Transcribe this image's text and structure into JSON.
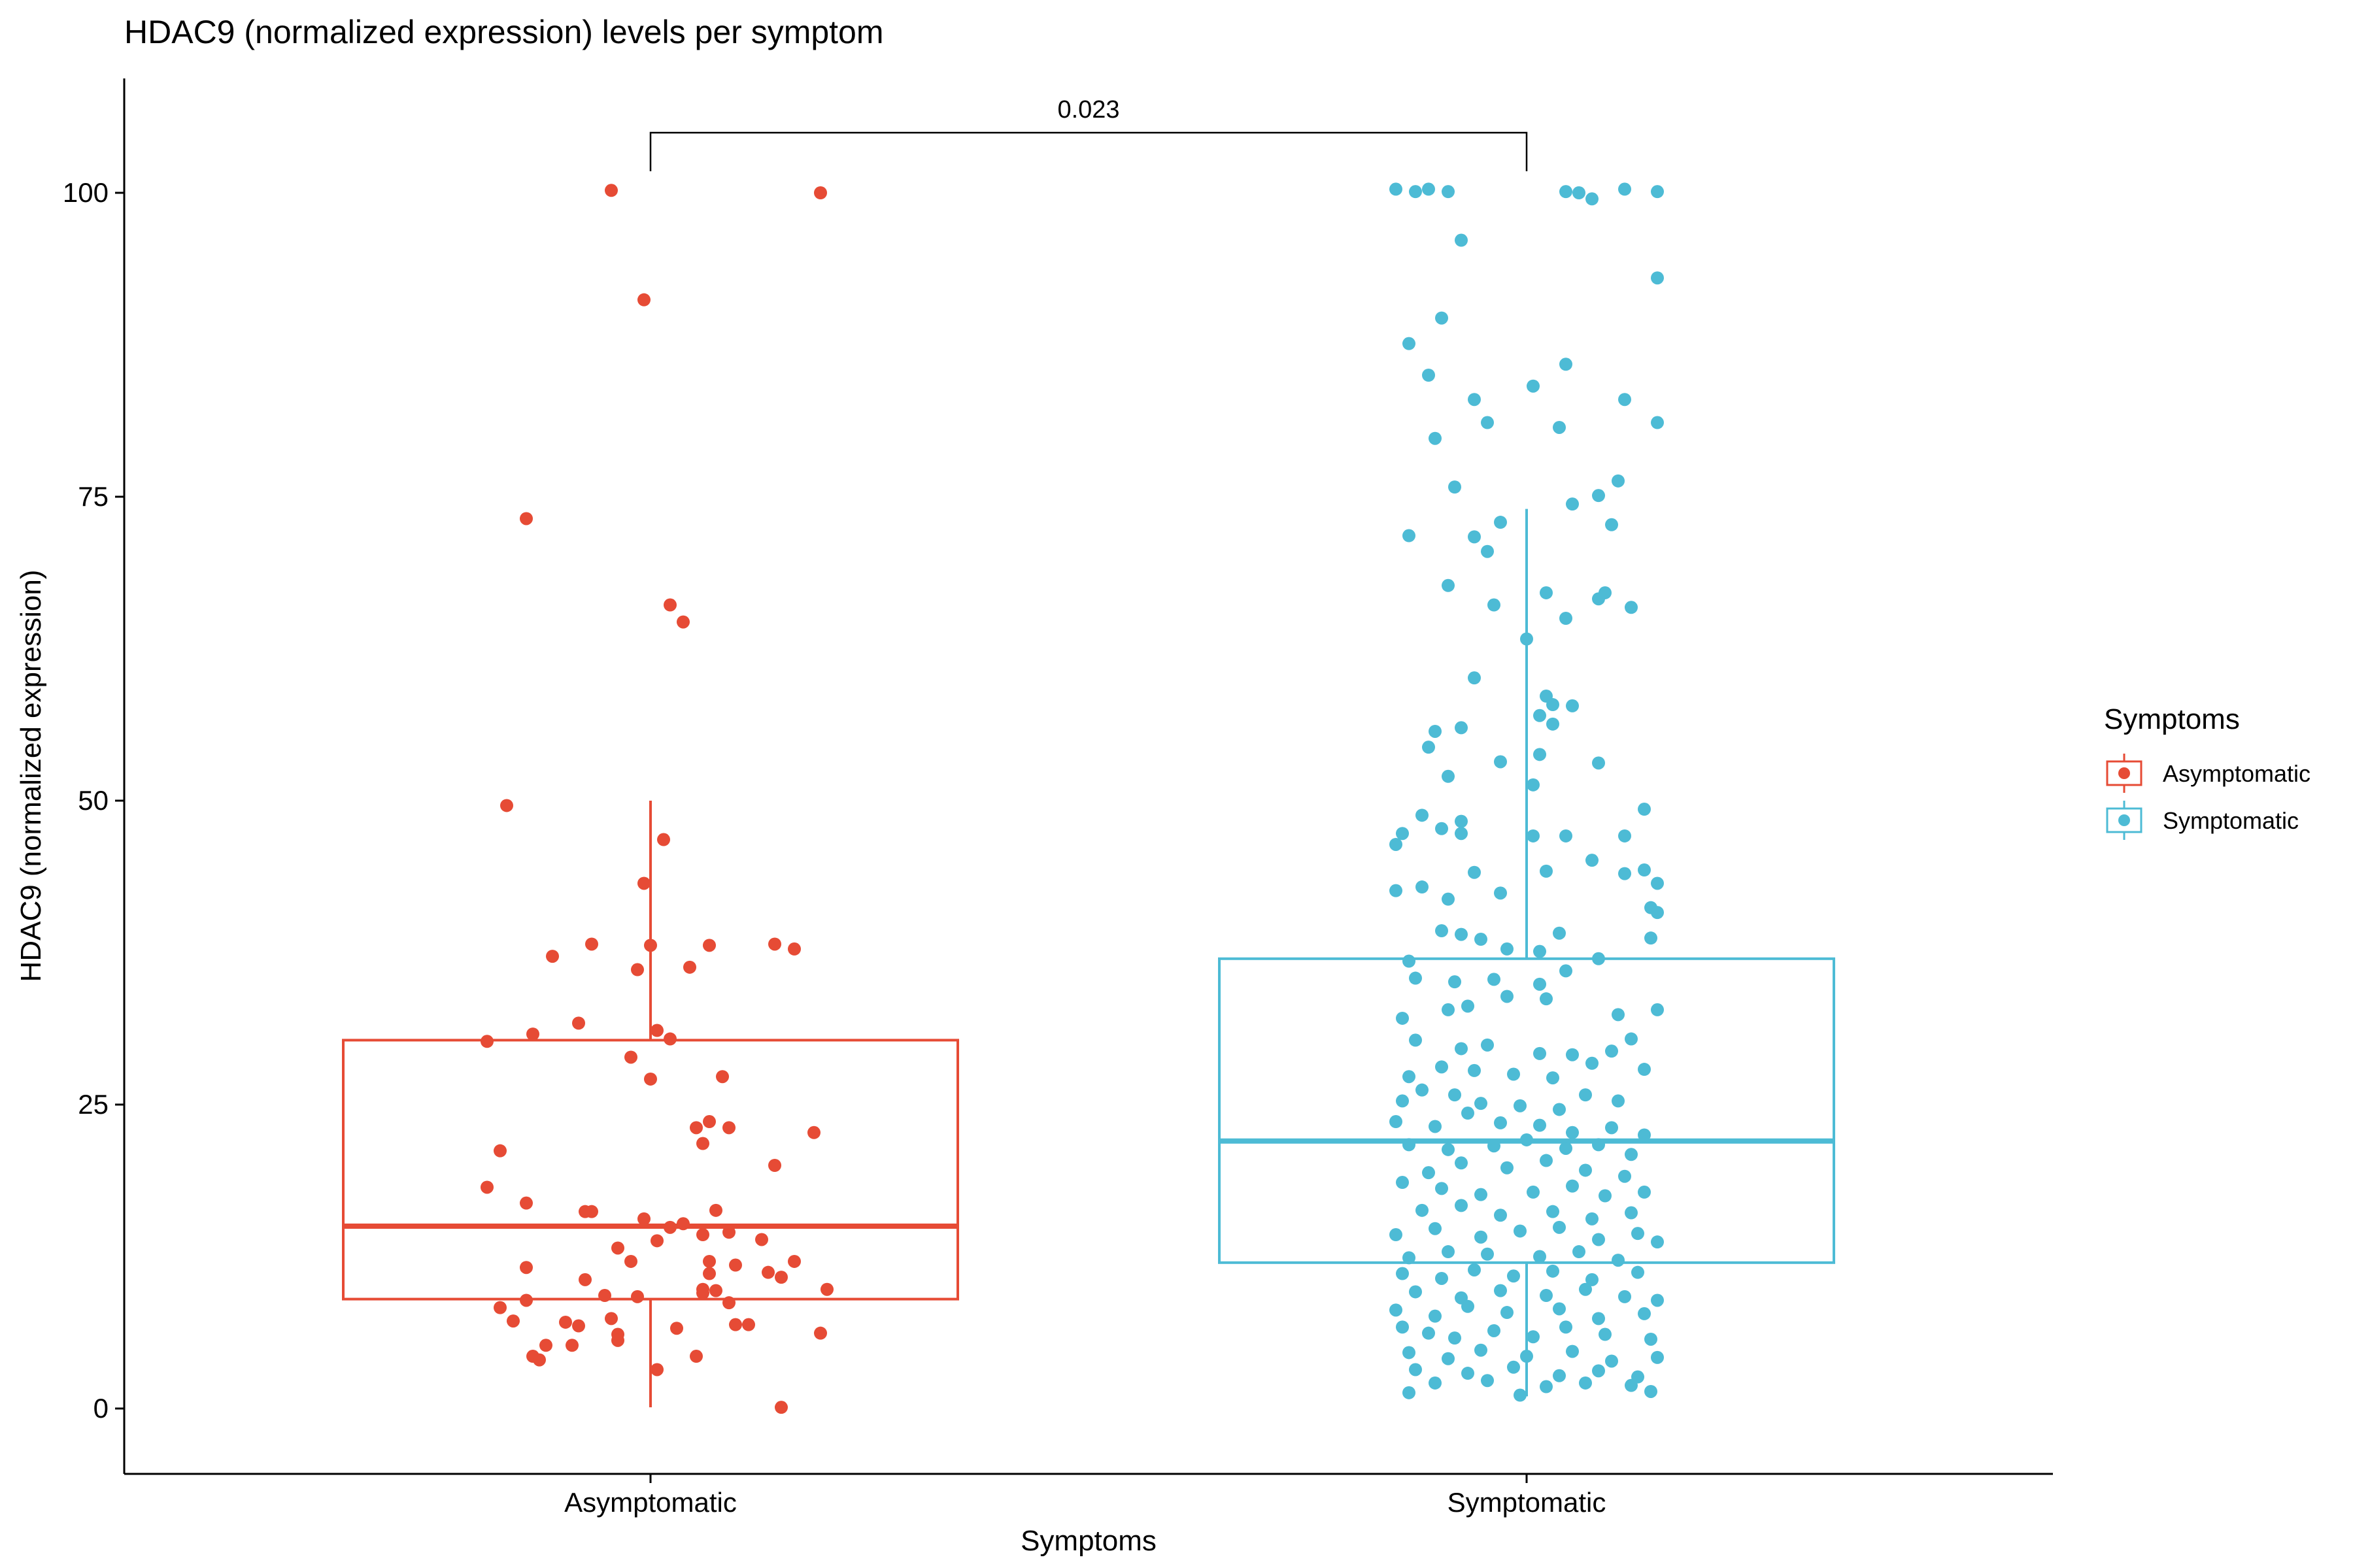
{
  "chart_data": {
    "type": "box",
    "title": "HDAC9 (normalized expression) levels per symptom",
    "xlabel": "Symptoms",
    "ylabel": "HDAC9 (normalized expression)",
    "ylim": [
      -5,
      110
    ],
    "yticks": [
      0,
      25,
      50,
      75,
      100
    ],
    "categories": [
      "Asymptomatic",
      "Symptomatic"
    ],
    "grid": false,
    "legend": {
      "title": "Symptoms",
      "position": "right",
      "entries": [
        "Asymptomatic",
        "Symptomatic"
      ]
    },
    "significance": {
      "label": "0.023",
      "groups": [
        "Asymptomatic",
        "Symptomatic"
      ],
      "y": 105
    },
    "series": [
      {
        "name": "Asymptomatic",
        "color": "#E64B35",
        "box": {
          "lower_whisker": 0.1,
          "q1": 9,
          "median": 15,
          "q3": 30.3,
          "upper_whisker": 50
        },
        "points": [
          [
            -0.06,
            100.2
          ],
          [
            0.26,
            100
          ],
          [
            -0.01,
            91.2
          ],
          [
            -0.19,
            73.2
          ],
          [
            0.03,
            66.1
          ],
          [
            0.05,
            64.7
          ],
          [
            -0.22,
            49.6
          ],
          [
            0.02,
            46.8
          ],
          [
            -0.01,
            43.2
          ],
          [
            -0.15,
            37.2
          ],
          [
            -0.09,
            38.2
          ],
          [
            0.0,
            38.1
          ],
          [
            0.09,
            38.1
          ],
          [
            0.19,
            38.2
          ],
          [
            0.22,
            37.8
          ],
          [
            -0.02,
            36.1
          ],
          [
            0.06,
            36.3
          ],
          [
            -0.11,
            31.7
          ],
          [
            -0.18,
            30.8
          ],
          [
            -0.25,
            30.2
          ],
          [
            0.01,
            31.1
          ],
          [
            0.03,
            30.4
          ],
          [
            -0.03,
            28.9
          ],
          [
            0.0,
            27.1
          ],
          [
            0.11,
            27.3
          ],
          [
            -0.23,
            21.2
          ],
          [
            0.07,
            23.1
          ],
          [
            0.09,
            23.6
          ],
          [
            0.12,
            23.1
          ],
          [
            0.08,
            21.8
          ],
          [
            0.19,
            20
          ],
          [
            0.25,
            22.7
          ],
          [
            -0.25,
            18.2
          ],
          [
            -0.19,
            16.9
          ],
          [
            -0.09,
            16.2
          ],
          [
            -0.1,
            16.2
          ],
          [
            -0.01,
            15.6
          ],
          [
            0.03,
            14.9
          ],
          [
            0.05,
            15.2
          ],
          [
            0.08,
            14.3
          ],
          [
            0.1,
            16.3
          ],
          [
            0.12,
            14.5
          ],
          [
            0.17,
            13.9
          ],
          [
            -0.05,
            13.2
          ],
          [
            -0.03,
            12.1
          ],
          [
            0.01,
            13.8
          ],
          [
            -0.19,
            11.6
          ],
          [
            0.09,
            12.1
          ],
          [
            0.09,
            11.1
          ],
          [
            0.13,
            11.8
          ],
          [
            0.18,
            11.2
          ],
          [
            0.22,
            12.1
          ],
          [
            0.2,
            10.8
          ],
          [
            -0.1,
            10.6
          ],
          [
            0.08,
            9.8
          ],
          [
            0.1,
            9.7
          ],
          [
            0.27,
            9.8
          ],
          [
            -0.19,
            8.9
          ],
          [
            -0.07,
            9.3
          ],
          [
            -0.02,
            9.2
          ],
          [
            0.08,
            9.5
          ],
          [
            0.12,
            8.7
          ],
          [
            -0.23,
            8.3
          ],
          [
            -0.21,
            7.2
          ],
          [
            -0.13,
            7.1
          ],
          [
            -0.11,
            6.8
          ],
          [
            -0.06,
            7.4
          ],
          [
            0.04,
            6.6
          ],
          [
            0.13,
            6.9
          ],
          [
            0.15,
            6.9
          ],
          [
            0.26,
            6.2
          ],
          [
            -0.05,
            6.1
          ],
          [
            -0.05,
            5.6
          ],
          [
            -0.12,
            5.2
          ],
          [
            -0.16,
            5.2
          ],
          [
            -0.18,
            4.3
          ],
          [
            -0.17,
            4.0
          ],
          [
            0.01,
            3.2
          ],
          [
            0.07,
            4.3
          ],
          [
            0.2,
            0.1
          ]
        ]
      },
      {
        "name": "Symptomatic",
        "color": "#4DBBD5",
        "box": {
          "lower_whisker": 1,
          "q1": 12,
          "median": 22,
          "q3": 37,
          "upper_whisker": 74
        },
        "points": [
          [
            -0.2,
            100.3
          ],
          [
            -0.17,
            100.1
          ],
          [
            -0.15,
            100.3
          ],
          [
            -0.12,
            100.1
          ],
          [
            0.06,
            100.1
          ],
          [
            0.08,
            100.0
          ],
          [
            0.1,
            99.5
          ],
          [
            0.15,
            100.3
          ],
          [
            0.2,
            100.1
          ],
          [
            -0.1,
            96.1
          ],
          [
            0.2,
            93
          ],
          [
            -0.13,
            89.7
          ],
          [
            -0.18,
            87.6
          ],
          [
            0.06,
            85.9
          ],
          [
            -0.15,
            85
          ],
          [
            0.01,
            84.1
          ],
          [
            -0.08,
            83
          ],
          [
            0.15,
            83
          ],
          [
            -0.06,
            81.1
          ],
          [
            0.05,
            80.7
          ],
          [
            0.2,
            81.1
          ],
          [
            -0.14,
            79.8
          ],
          [
            0.14,
            76.3
          ],
          [
            -0.11,
            75.8
          ],
          [
            -0.18,
            71.8
          ],
          [
            0.07,
            74.4
          ],
          [
            0.11,
            75.1
          ],
          [
            0.13,
            72.7
          ],
          [
            -0.04,
            72.9
          ],
          [
            -0.08,
            71.7
          ],
          [
            -0.06,
            70.5
          ],
          [
            -0.12,
            67.7
          ],
          [
            -0.05,
            66.1
          ],
          [
            0.03,
            67.1
          ],
          [
            0.12,
            67.1
          ],
          [
            0.11,
            66.6
          ],
          [
            0.16,
            65.9
          ],
          [
            0.06,
            65
          ],
          [
            0.0,
            63.3
          ],
          [
            -0.08,
            60.1
          ],
          [
            0.03,
            58.6
          ],
          [
            0.04,
            57.9
          ],
          [
            0.07,
            57.8
          ],
          [
            0.02,
            57
          ],
          [
            0.04,
            56.3
          ],
          [
            -0.14,
            55.7
          ],
          [
            -0.1,
            56
          ],
          [
            0.02,
            53.8
          ],
          [
            -0.15,
            54.4
          ],
          [
            -0.12,
            52
          ],
          [
            -0.04,
            53.2
          ],
          [
            0.11,
            53.1
          ],
          [
            0.01,
            51.3
          ],
          [
            -0.19,
            47.3
          ],
          [
            -0.2,
            46.4
          ],
          [
            -0.16,
            48.8
          ],
          [
            -0.13,
            47.7
          ],
          [
            -0.1,
            47.3
          ],
          [
            -0.1,
            48.3
          ],
          [
            0.01,
            47.1
          ],
          [
            0.06,
            47.1
          ],
          [
            0.15,
            47.1
          ],
          [
            0.18,
            49.3
          ],
          [
            0.15,
            44
          ],
          [
            -0.2,
            42.6
          ],
          [
            -0.16,
            42.9
          ],
          [
            -0.12,
            41.9
          ],
          [
            -0.08,
            44.1
          ],
          [
            -0.04,
            42.4
          ],
          [
            0.03,
            44.2
          ],
          [
            0.1,
            45.1
          ],
          [
            0.18,
            44.3
          ],
          [
            0.2,
            43.2
          ],
          [
            0.19,
            41.2
          ],
          [
            0.2,
            40.8
          ],
          [
            -0.13,
            39.3
          ],
          [
            -0.1,
            39
          ],
          [
            -0.07,
            38.6
          ],
          [
            -0.03,
            37.8
          ],
          [
            0.02,
            37.6
          ],
          [
            0.05,
            39.1
          ],
          [
            -0.18,
            36.8
          ],
          [
            0.11,
            37
          ],
          [
            0.19,
            38.7
          ],
          [
            -0.17,
            35.4
          ],
          [
            -0.11,
            35.1
          ],
          [
            -0.05,
            35.3
          ],
          [
            0.02,
            34.9
          ],
          [
            0.06,
            36
          ],
          [
            -0.19,
            32.1
          ],
          [
            -0.12,
            32.8
          ],
          [
            -0.09,
            33.1
          ],
          [
            -0.03,
            33.9
          ],
          [
            0.03,
            33.7
          ],
          [
            0.14,
            32.4
          ],
          [
            0.2,
            32.8
          ],
          [
            -0.17,
            30.3
          ],
          [
            -0.1,
            29.6
          ],
          [
            -0.06,
            29.9
          ],
          [
            0.02,
            29.2
          ],
          [
            0.07,
            29.1
          ],
          [
            0.13,
            29.4
          ],
          [
            0.16,
            30.4
          ],
          [
            -0.18,
            27.3
          ],
          [
            -0.13,
            28.1
          ],
          [
            -0.08,
            27.8
          ],
          [
            -0.02,
            27.5
          ],
          [
            0.04,
            27.2
          ],
          [
            0.1,
            28.4
          ],
          [
            0.18,
            27.9
          ],
          [
            -0.19,
            25.3
          ],
          [
            -0.16,
            26.2
          ],
          [
            -0.11,
            25.8
          ],
          [
            -0.07,
            25.1
          ],
          [
            -0.01,
            24.9
          ],
          [
            0.05,
            24.6
          ],
          [
            0.09,
            25.8
          ],
          [
            0.14,
            25.3
          ],
          [
            -0.2,
            23.6
          ],
          [
            -0.14,
            23.2
          ],
          [
            -0.09,
            24.3
          ],
          [
            -0.04,
            23.5
          ],
          [
            0.02,
            23.3
          ],
          [
            0.07,
            22.7
          ],
          [
            0.13,
            23.1
          ],
          [
            0.18,
            22.5
          ],
          [
            -0.18,
            21.7
          ],
          [
            -0.12,
            21.3
          ],
          [
            -0.05,
            21.6
          ],
          [
            0.0,
            22.1
          ],
          [
            0.06,
            21.4
          ],
          [
            0.11,
            21.7
          ],
          [
            0.16,
            20.9
          ],
          [
            -0.15,
            19.4
          ],
          [
            -0.1,
            20.2
          ],
          [
            -0.03,
            19.8
          ],
          [
            0.03,
            20.4
          ],
          [
            0.09,
            19.6
          ],
          [
            0.15,
            19.1
          ],
          [
            -0.19,
            18.6
          ],
          [
            -0.13,
            18.1
          ],
          [
            -0.07,
            17.6
          ],
          [
            0.01,
            17.8
          ],
          [
            0.07,
            18.3
          ],
          [
            0.12,
            17.5
          ],
          [
            0.18,
            17.8
          ],
          [
            -0.16,
            16.3
          ],
          [
            -0.1,
            16.7
          ],
          [
            -0.04,
            15.9
          ],
          [
            0.04,
            16.2
          ],
          [
            0.1,
            15.6
          ],
          [
            0.16,
            16.1
          ],
          [
            -0.2,
            14.3
          ],
          [
            -0.14,
            14.8
          ],
          [
            -0.07,
            14.1
          ],
          [
            -0.01,
            14.6
          ],
          [
            0.05,
            14.9
          ],
          [
            0.11,
            13.9
          ],
          [
            0.17,
            14.4
          ],
          [
            0.2,
            13.7
          ],
          [
            -0.18,
            12.4
          ],
          [
            -0.12,
            12.9
          ],
          [
            -0.06,
            12.7
          ],
          [
            0.02,
            12.5
          ],
          [
            0.08,
            12.9
          ],
          [
            0.14,
            12.2
          ],
          [
            -0.19,
            11.1
          ],
          [
            -0.13,
            10.7
          ],
          [
            -0.08,
            11.4
          ],
          [
            -0.02,
            10.9
          ],
          [
            0.04,
            11.3
          ],
          [
            0.1,
            10.6
          ],
          [
            0.17,
            11.2
          ],
          [
            -0.17,
            9.6
          ],
          [
            -0.1,
            9.1
          ],
          [
            -0.04,
            9.7
          ],
          [
            0.03,
            9.3
          ],
          [
            0.09,
            9.8
          ],
          [
            0.15,
            9.2
          ],
          [
            0.2,
            8.9
          ],
          [
            -0.2,
            8.1
          ],
          [
            -0.14,
            7.6
          ],
          [
            -0.09,
            8.4
          ],
          [
            -0.03,
            7.9
          ],
          [
            0.05,
            8.2
          ],
          [
            0.11,
            7.4
          ],
          [
            0.18,
            7.8
          ],
          [
            -0.19,
            6.7
          ],
          [
            -0.15,
            6.2
          ],
          [
            -0.11,
            5.8
          ],
          [
            -0.05,
            6.4
          ],
          [
            0.01,
            5.9
          ],
          [
            0.06,
            6.7
          ],
          [
            0.12,
            6.1
          ],
          [
            0.19,
            5.7
          ],
          [
            -0.18,
            4.6
          ],
          [
            -0.12,
            4.1
          ],
          [
            -0.07,
            4.8
          ],
          [
            0.0,
            4.3
          ],
          [
            0.07,
            4.7
          ],
          [
            0.13,
            3.9
          ],
          [
            0.2,
            4.2
          ],
          [
            -0.17,
            3.2
          ],
          [
            -0.09,
            2.9
          ],
          [
            -0.02,
            3.4
          ],
          [
            0.05,
            2.7
          ],
          [
            0.11,
            3.1
          ],
          [
            0.17,
            2.6
          ],
          [
            -0.14,
            2.1
          ],
          [
            -0.06,
            2.3
          ],
          [
            0.03,
            1.8
          ],
          [
            0.09,
            2.1
          ],
          [
            0.16,
            1.9
          ],
          [
            -0.18,
            1.3
          ],
          [
            -0.01,
            1.1
          ],
          [
            0.19,
            1.4
          ]
        ]
      }
    ]
  }
}
